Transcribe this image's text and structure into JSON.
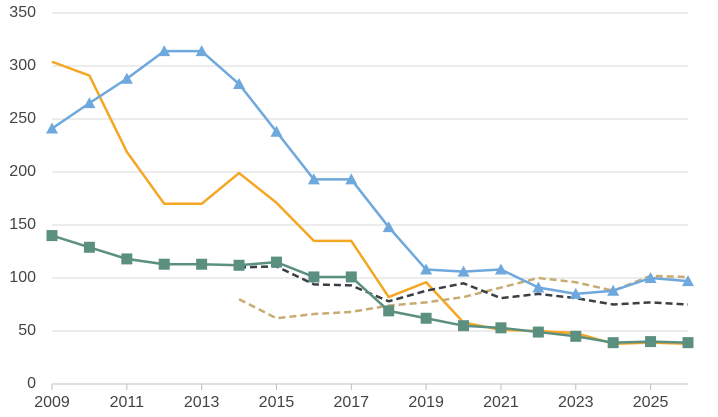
{
  "chart_data": {
    "type": "line",
    "x": [
      2009,
      2010,
      2011,
      2012,
      2013,
      2014,
      2015,
      2016,
      2017,
      2018,
      2019,
      2020,
      2021,
      2022,
      2023,
      2024,
      2025,
      2026
    ],
    "series": [
      {
        "color": "#f5a623",
        "marker": null,
        "dash": false,
        "values": [
          304,
          291,
          219,
          170,
          170,
          199,
          171,
          135,
          135,
          82,
          96,
          58,
          51,
          50,
          48,
          38,
          39,
          38
        ]
      },
      {
        "color": "#c8ab72",
        "marker": null,
        "dash": true,
        "values": [
          null,
          null,
          null,
          null,
          null,
          80,
          62,
          66,
          68,
          74,
          77,
          82,
          91,
          100,
          96,
          88,
          102,
          101
        ]
      },
      {
        "color": "#3a3f44",
        "marker": null,
        "dash": true,
        "values": [
          null,
          null,
          null,
          null,
          null,
          110,
          111,
          94,
          93,
          78,
          88,
          95,
          81,
          85,
          81,
          75,
          77,
          75
        ]
      },
      {
        "color": "#6fa8dc",
        "marker": "triangle",
        "dash": false,
        "values": [
          241,
          265,
          288,
          314,
          314,
          283,
          238,
          193,
          193,
          148,
          108,
          106,
          108,
          91,
          85,
          88,
          100,
          97
        ]
      },
      {
        "color": "#5b8f7f",
        "marker": "square",
        "dash": false,
        "values": [
          140,
          129,
          118,
          113,
          113,
          112,
          115,
          101,
          101,
          69,
          62,
          55,
          53,
          49,
          45,
          39,
          40,
          39
        ]
      }
    ],
    "xlim": [
      2009,
      2026
    ],
    "xticks": [
      2009,
      2011,
      2013,
      2015,
      2017,
      2019,
      2021,
      2023,
      2025
    ],
    "ylim": [
      0,
      350
    ],
    "yticks": [
      0,
      50,
      100,
      150,
      200,
      250,
      300,
      350
    ],
    "grid": true
  }
}
